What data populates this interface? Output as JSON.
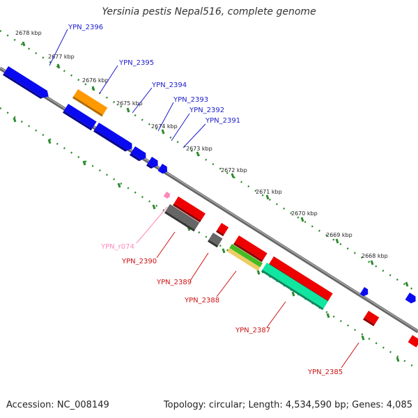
{
  "title": "Yersinia pestis Nepal516, complete genome",
  "footer": {
    "accession": "Accession: NC_008149",
    "summary": "Topology: circular; Length: 4,534,590 bp; Genes: 4,085"
  },
  "colors": {
    "backbone": "#808080",
    "dots": "#2d8a2d",
    "kbp_label": "#222222",
    "gene_label_blue": "#1a1acc",
    "gene_label_red": "#cc1111",
    "gene_label_pink": "#ff88bb",
    "cds_blue": "#0a0af0",
    "cds_red": "#ee0000",
    "cds_gray": "#666666",
    "cds_orange": "#ff9900",
    "cds_teal": "#11e6a0",
    "cds_green": "#44bb22",
    "cds_tan": "#eecc66",
    "trna_pink": "#ff88bb"
  },
  "kbp_ticks": [
    "2678 kbp",
    "2677 kbp",
    "2676 kbp",
    "2675 kbp",
    "2674 kbp",
    "2673 kbp",
    "2672 kbp",
    "2671 kbp",
    "2670 kbp",
    "2669 kbp",
    "2668 kbp"
  ],
  "gene_labels_top": [
    "YPN_2396",
    "YPN_2395",
    "YPN_2394",
    "YPN_2393",
    "YPN_2392",
    "YPN_2391"
  ],
  "gene_labels_bottom": [
    "YPN_r074",
    "YPN_2390",
    "YPN_2389",
    "YPN_2388",
    "YPN_2387",
    "YPN_2385"
  ]
}
